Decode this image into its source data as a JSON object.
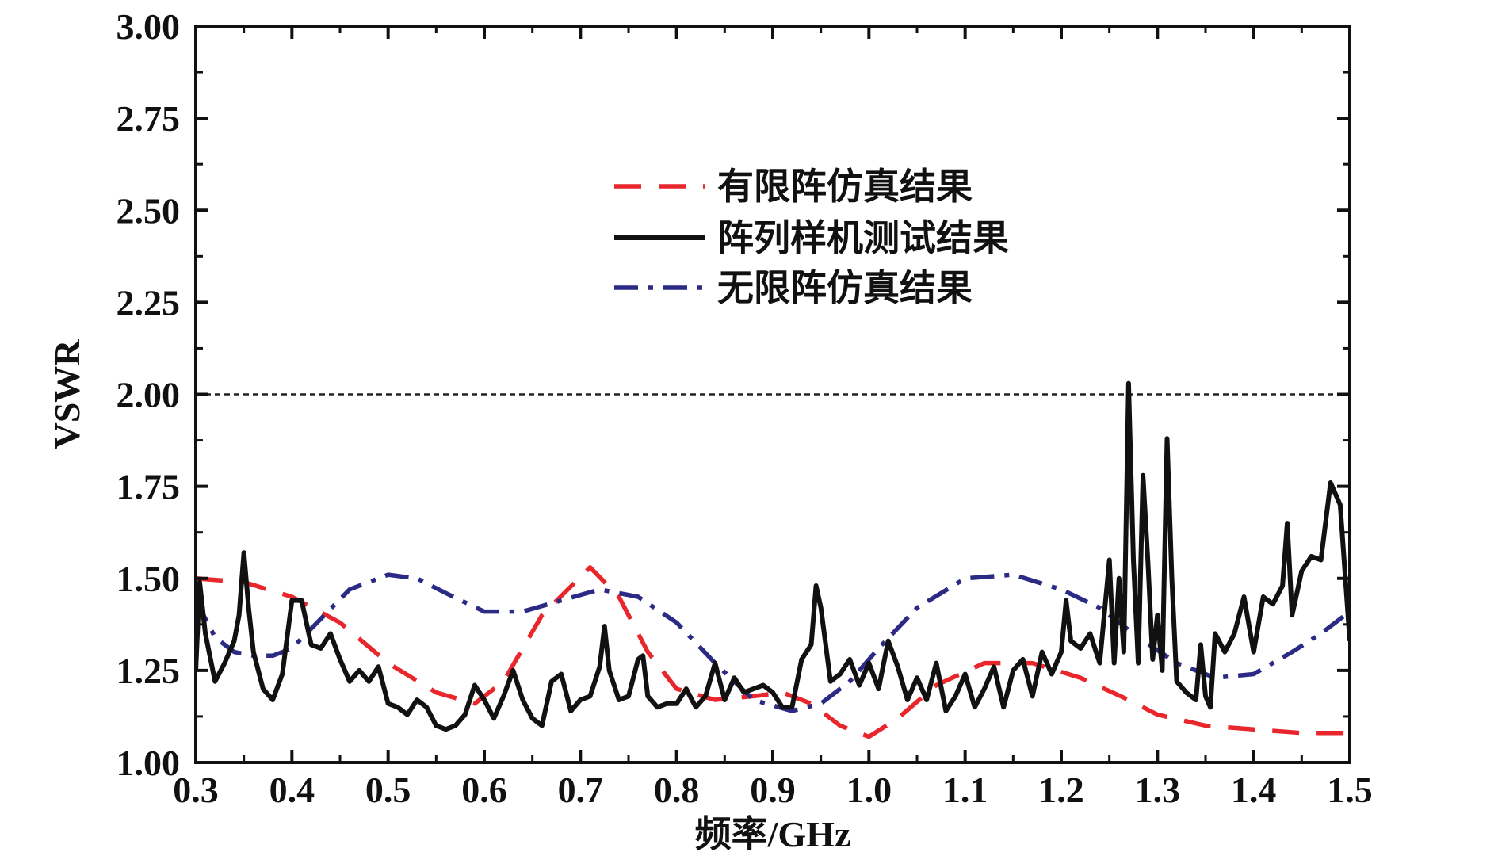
{
  "chart_data": {
    "type": "line",
    "xlabel": "频率/GHz",
    "ylabel": "VSWR",
    "xlim": [
      0.3,
      1.5
    ],
    "ylim": [
      1.0,
      3.0
    ],
    "xticks": [
      "0.3",
      "0.4",
      "0.5",
      "0.6",
      "0.7",
      "0.8",
      "0.9",
      "1.0",
      "1.1",
      "1.2",
      "1.3",
      "1.4",
      "1.5"
    ],
    "yticks": [
      "1.00",
      "1.25",
      "1.50",
      "1.75",
      "2.00",
      "2.25",
      "2.50",
      "2.75",
      "3.00"
    ],
    "reference_line": {
      "y": 2.0,
      "style": "dotted",
      "color": "#222222"
    },
    "legend_position": "top-center",
    "grid": false,
    "series": [
      {
        "name": "有限阵仿真结果",
        "color": "#e8262b",
        "style": "dashed",
        "points": [
          [
            0.3,
            1.5
          ],
          [
            0.35,
            1.49
          ],
          [
            0.4,
            1.45
          ],
          [
            0.45,
            1.38
          ],
          [
            0.5,
            1.27
          ],
          [
            0.55,
            1.19
          ],
          [
            0.59,
            1.16
          ],
          [
            0.62,
            1.22
          ],
          [
            0.66,
            1.4
          ],
          [
            0.71,
            1.53
          ],
          [
            0.74,
            1.45
          ],
          [
            0.77,
            1.3
          ],
          [
            0.8,
            1.2
          ],
          [
            0.84,
            1.17
          ],
          [
            0.88,
            1.18
          ],
          [
            0.91,
            1.19
          ],
          [
            0.94,
            1.16
          ],
          [
            0.97,
            1.1
          ],
          [
            1.0,
            1.07
          ],
          [
            1.03,
            1.12
          ],
          [
            1.07,
            1.21
          ],
          [
            1.12,
            1.27
          ],
          [
            1.17,
            1.27
          ],
          [
            1.22,
            1.23
          ],
          [
            1.27,
            1.17
          ],
          [
            1.3,
            1.13
          ],
          [
            1.35,
            1.1
          ],
          [
            1.4,
            1.09
          ],
          [
            1.45,
            1.08
          ],
          [
            1.5,
            1.08
          ]
        ]
      },
      {
        "name": "阵列样机测试结果",
        "color": "#111111",
        "style": "solid",
        "points": [
          [
            0.3,
            1.25
          ],
          [
            0.304,
            1.49
          ],
          [
            0.31,
            1.35
          ],
          [
            0.32,
            1.22
          ],
          [
            0.33,
            1.27
          ],
          [
            0.34,
            1.33
          ],
          [
            0.345,
            1.4
          ],
          [
            0.35,
            1.57
          ],
          [
            0.355,
            1.42
          ],
          [
            0.36,
            1.3
          ],
          [
            0.37,
            1.2
          ],
          [
            0.38,
            1.17
          ],
          [
            0.39,
            1.24
          ],
          [
            0.4,
            1.44
          ],
          [
            0.41,
            1.44
          ],
          [
            0.42,
            1.32
          ],
          [
            0.43,
            1.31
          ],
          [
            0.44,
            1.35
          ],
          [
            0.45,
            1.28
          ],
          [
            0.46,
            1.22
          ],
          [
            0.47,
            1.25
          ],
          [
            0.48,
            1.22
          ],
          [
            0.49,
            1.26
          ],
          [
            0.5,
            1.16
          ],
          [
            0.51,
            1.15
          ],
          [
            0.52,
            1.13
          ],
          [
            0.53,
            1.17
          ],
          [
            0.54,
            1.15
          ],
          [
            0.55,
            1.1
          ],
          [
            0.56,
            1.09
          ],
          [
            0.57,
            1.1
          ],
          [
            0.58,
            1.13
          ],
          [
            0.59,
            1.21
          ],
          [
            0.6,
            1.17
          ],
          [
            0.61,
            1.12
          ],
          [
            0.62,
            1.18
          ],
          [
            0.63,
            1.25
          ],
          [
            0.64,
            1.17
          ],
          [
            0.65,
            1.12
          ],
          [
            0.66,
            1.1
          ],
          [
            0.67,
            1.22
          ],
          [
            0.68,
            1.24
          ],
          [
            0.69,
            1.14
          ],
          [
            0.7,
            1.17
          ],
          [
            0.71,
            1.18
          ],
          [
            0.72,
            1.26
          ],
          [
            0.725,
            1.37
          ],
          [
            0.73,
            1.25
          ],
          [
            0.74,
            1.17
          ],
          [
            0.75,
            1.18
          ],
          [
            0.76,
            1.28
          ],
          [
            0.765,
            1.29
          ],
          [
            0.77,
            1.18
          ],
          [
            0.78,
            1.15
          ],
          [
            0.79,
            1.16
          ],
          [
            0.8,
            1.16
          ],
          [
            0.81,
            1.2
          ],
          [
            0.82,
            1.15
          ],
          [
            0.83,
            1.18
          ],
          [
            0.84,
            1.27
          ],
          [
            0.85,
            1.17
          ],
          [
            0.86,
            1.23
          ],
          [
            0.87,
            1.19
          ],
          [
            0.88,
            1.2
          ],
          [
            0.89,
            1.21
          ],
          [
            0.9,
            1.19
          ],
          [
            0.91,
            1.15
          ],
          [
            0.92,
            1.15
          ],
          [
            0.93,
            1.28
          ],
          [
            0.94,
            1.32
          ],
          [
            0.945,
            1.48
          ],
          [
            0.95,
            1.42
          ],
          [
            0.96,
            1.22
          ],
          [
            0.97,
            1.24
          ],
          [
            0.98,
            1.28
          ],
          [
            0.99,
            1.21
          ],
          [
            1.0,
            1.27
          ],
          [
            1.01,
            1.2
          ],
          [
            1.02,
            1.33
          ],
          [
            1.03,
            1.26
          ],
          [
            1.04,
            1.17
          ],
          [
            1.05,
            1.23
          ],
          [
            1.06,
            1.17
          ],
          [
            1.07,
            1.27
          ],
          [
            1.08,
            1.14
          ],
          [
            1.09,
            1.18
          ],
          [
            1.1,
            1.24
          ],
          [
            1.11,
            1.15
          ],
          [
            1.12,
            1.2
          ],
          [
            1.13,
            1.26
          ],
          [
            1.14,
            1.15
          ],
          [
            1.15,
            1.25
          ],
          [
            1.16,
            1.28
          ],
          [
            1.17,
            1.18
          ],
          [
            1.18,
            1.3
          ],
          [
            1.19,
            1.24
          ],
          [
            1.2,
            1.3
          ],
          [
            1.205,
            1.44
          ],
          [
            1.21,
            1.33
          ],
          [
            1.22,
            1.31
          ],
          [
            1.23,
            1.35
          ],
          [
            1.24,
            1.27
          ],
          [
            1.25,
            1.55
          ],
          [
            1.255,
            1.27
          ],
          [
            1.26,
            1.5
          ],
          [
            1.265,
            1.3
          ],
          [
            1.27,
            2.03
          ],
          [
            1.275,
            1.55
          ],
          [
            1.28,
            1.27
          ],
          [
            1.285,
            1.78
          ],
          [
            1.29,
            1.55
          ],
          [
            1.295,
            1.28
          ],
          [
            1.3,
            1.4
          ],
          [
            1.305,
            1.25
          ],
          [
            1.31,
            1.88
          ],
          [
            1.315,
            1.5
          ],
          [
            1.32,
            1.22
          ],
          [
            1.33,
            1.19
          ],
          [
            1.34,
            1.17
          ],
          [
            1.345,
            1.32
          ],
          [
            1.35,
            1.18
          ],
          [
            1.355,
            1.15
          ],
          [
            1.36,
            1.35
          ],
          [
            1.37,
            1.3
          ],
          [
            1.38,
            1.35
          ],
          [
            1.39,
            1.45
          ],
          [
            1.4,
            1.3
          ],
          [
            1.41,
            1.45
          ],
          [
            1.42,
            1.43
          ],
          [
            1.43,
            1.48
          ],
          [
            1.435,
            1.65
          ],
          [
            1.44,
            1.4
          ],
          [
            1.45,
            1.52
          ],
          [
            1.46,
            1.56
          ],
          [
            1.47,
            1.55
          ],
          [
            1.48,
            1.76
          ],
          [
            1.49,
            1.7
          ],
          [
            1.5,
            1.33
          ]
        ]
      },
      {
        "name": "无限阵仿真结果",
        "color": "#2b2a84",
        "style": "dashdot",
        "points": [
          [
            0.3,
            1.44
          ],
          [
            0.32,
            1.34
          ],
          [
            0.34,
            1.3
          ],
          [
            0.36,
            1.29
          ],
          [
            0.38,
            1.29
          ],
          [
            0.4,
            1.31
          ],
          [
            0.43,
            1.39
          ],
          [
            0.46,
            1.47
          ],
          [
            0.5,
            1.51
          ],
          [
            0.53,
            1.5
          ],
          [
            0.56,
            1.46
          ],
          [
            0.6,
            1.41
          ],
          [
            0.64,
            1.41
          ],
          [
            0.68,
            1.44
          ],
          [
            0.72,
            1.47
          ],
          [
            0.76,
            1.45
          ],
          [
            0.8,
            1.38
          ],
          [
            0.84,
            1.27
          ],
          [
            0.88,
            1.17
          ],
          [
            0.92,
            1.14
          ],
          [
            0.95,
            1.16
          ],
          [
            0.98,
            1.22
          ],
          [
            1.01,
            1.31
          ],
          [
            1.05,
            1.42
          ],
          [
            1.1,
            1.5
          ],
          [
            1.15,
            1.51
          ],
          [
            1.2,
            1.47
          ],
          [
            1.24,
            1.42
          ],
          [
            1.28,
            1.34
          ],
          [
            1.32,
            1.27
          ],
          [
            1.36,
            1.23
          ],
          [
            1.4,
            1.24
          ],
          [
            1.44,
            1.3
          ],
          [
            1.47,
            1.35
          ],
          [
            1.5,
            1.41
          ]
        ]
      }
    ]
  }
}
